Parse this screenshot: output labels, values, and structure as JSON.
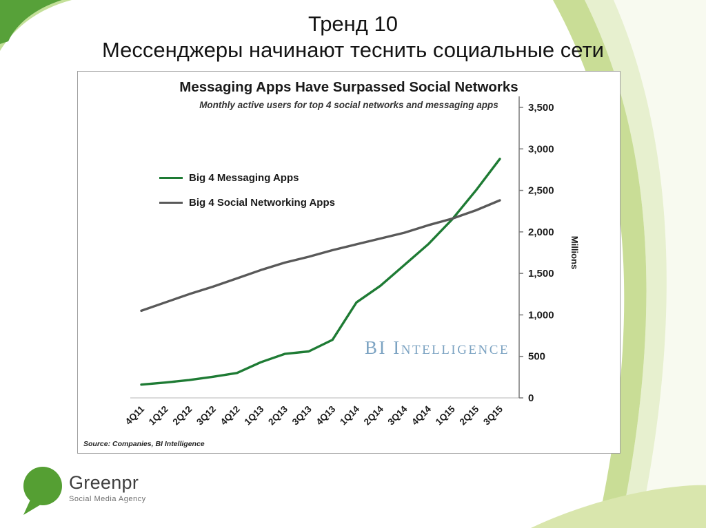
{
  "slide": {
    "title_line1": "Тренд 10",
    "title_line2": "Мессенджеры начинают теснить социальные сети"
  },
  "chart_data": {
    "type": "line",
    "title": "Messaging Apps Have Surpassed Social Networks",
    "subtitle": "Monthly active users for top 4 social networks and messaging apps",
    "categories": [
      "4Q11",
      "1Q12",
      "2Q12",
      "3Q12",
      "4Q12",
      "1Q13",
      "2Q13",
      "3Q13",
      "4Q13",
      "1Q14",
      "2Q14",
      "3Q14",
      "4Q14",
      "1Q15",
      "2Q15",
      "3Q15"
    ],
    "series": [
      {
        "name": "Big 4 Messaging Apps",
        "color": "#1e7b34",
        "values": [
          160,
          185,
          215,
          255,
          300,
          430,
          530,
          560,
          700,
          1150,
          1350,
          1600,
          1850,
          2150,
          2500,
          2880
        ]
      },
      {
        "name": "Big 4 Social Networking Apps",
        "color": "#595959",
        "values": [
          1050,
          1150,
          1250,
          1340,
          1440,
          1540,
          1630,
          1700,
          1780,
          1850,
          1920,
          1990,
          2080,
          2160,
          2260,
          2380
        ]
      }
    ],
    "ylabel": "Millions",
    "xlabel": "",
    "ylim": [
      0,
      3500
    ],
    "yticks": [
      0,
      500,
      1000,
      1500,
      2000,
      2500,
      3000,
      3500
    ],
    "ytick_labels": [
      "0",
      "500",
      "1,000",
      "1,500",
      "2,000",
      "2,500",
      "3,000",
      "3,500"
    ],
    "grid": false,
    "legend_position": "upper-left",
    "watermark": "BI Intelligence",
    "source": "Source: Companies, BI Intelligence"
  },
  "logo": {
    "name": "Greenpr",
    "tagline": "Social Media Agency"
  },
  "colors": {
    "logo_green": "#559f33",
    "deco_green_dark": "#57a139",
    "deco_band": "#c9dd96",
    "watermark_blue": "#7ca3c2"
  }
}
